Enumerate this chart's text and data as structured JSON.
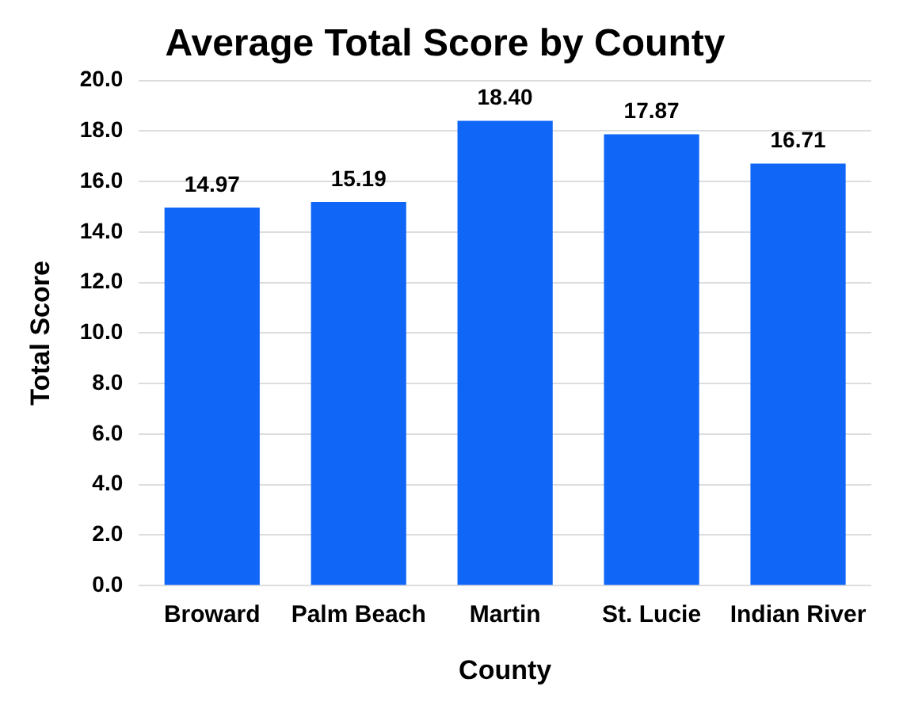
{
  "chart_data": {
    "type": "bar",
    "title": "Average Total Score by County",
    "xlabel": "County",
    "ylabel": "Total Score",
    "categories": [
      "Broward",
      "Palm Beach",
      "Martin",
      "St. Lucie",
      "Indian River"
    ],
    "values": [
      14.97,
      15.19,
      18.4,
      17.87,
      16.71
    ],
    "value_labels": [
      "14.97",
      "15.19",
      "18.40",
      "17.87",
      "16.71"
    ],
    "color": "#0f66f7",
    "ylim": [
      0,
      20
    ],
    "yticks": [
      {
        "value": 0,
        "label": "0.0"
      },
      {
        "value": 2,
        "label": "2.0"
      },
      {
        "value": 4,
        "label": "4.0"
      },
      {
        "value": 6,
        "label": "6.0"
      },
      {
        "value": 8,
        "label": "8.0"
      },
      {
        "value": 10,
        "label": "10.0"
      },
      {
        "value": 12,
        "label": "12.0"
      },
      {
        "value": 14,
        "label": "14.0"
      },
      {
        "value": 16,
        "label": "16.0"
      },
      {
        "value": 18,
        "label": "18.0"
      },
      {
        "value": 20,
        "label": "20.0"
      }
    ],
    "grid": "y",
    "legend": false
  }
}
